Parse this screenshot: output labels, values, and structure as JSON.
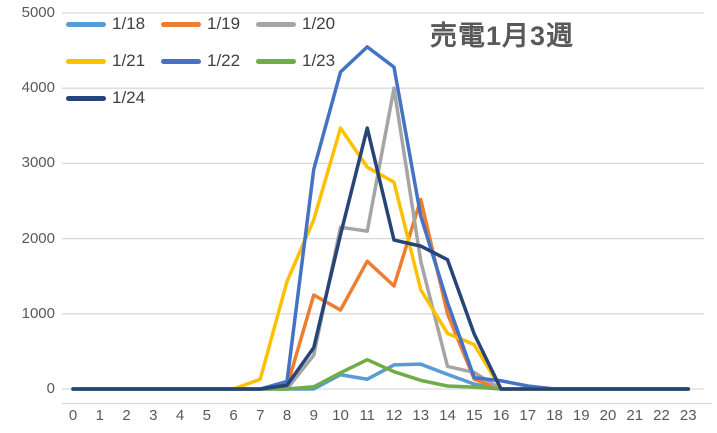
{
  "title": "売電1月3週",
  "colors": {
    "axis_label": "#595959",
    "legend_text": "#404040",
    "gridline": "#D9D9D9",
    "axis_line": "#D9D9D9",
    "title_text": "#595959",
    "background": "#FFFFFF"
  },
  "chart_data": {
    "type": "line",
    "title": "売電1月3週",
    "x": [
      0,
      1,
      2,
      3,
      4,
      5,
      6,
      7,
      8,
      9,
      10,
      11,
      12,
      13,
      14,
      15,
      16,
      17,
      18,
      19,
      20,
      21,
      22,
      23
    ],
    "x_labels": [
      "0",
      "1",
      "2",
      "3",
      "4",
      "5",
      "6",
      "7",
      "8",
      "9",
      "10",
      "11",
      "12",
      "13",
      "14",
      "15",
      "16",
      "17",
      "18",
      "19",
      "20",
      "21",
      "22",
      "23"
    ],
    "y_ticks": [
      0,
      1000,
      2000,
      3000,
      4000,
      5000
    ],
    "ylim": [
      0,
      5000
    ],
    "grid": true,
    "legend_position": "top-left",
    "series": [
      {
        "name": "1/18",
        "color": "#5B9BD5",
        "values": [
          0,
          0,
          0,
          0,
          0,
          0,
          0,
          0,
          0,
          0,
          190,
          130,
          320,
          330,
          195,
          65,
          0,
          0,
          0,
          0,
          0,
          0,
          0,
          0
        ]
      },
      {
        "name": "1/19",
        "color": "#ED7D31",
        "values": [
          0,
          0,
          0,
          0,
          0,
          0,
          0,
          0,
          30,
          1250,
          1050,
          1700,
          1370,
          2520,
          1000,
          130,
          0,
          0,
          0,
          0,
          0,
          0,
          0,
          0
        ]
      },
      {
        "name": "1/20",
        "color": "#A5A5A5",
        "values": [
          0,
          0,
          0,
          0,
          0,
          0,
          0,
          0,
          0,
          450,
          2150,
          2100,
          4000,
          1700,
          300,
          220,
          0,
          0,
          0,
          0,
          0,
          0,
          0,
          0
        ]
      },
      {
        "name": "1/21",
        "color": "#FFC000",
        "values": [
          0,
          0,
          0,
          0,
          0,
          0,
          0,
          130,
          1430,
          2250,
          3470,
          2950,
          2750,
          1320,
          740,
          590,
          0,
          0,
          0,
          0,
          0,
          0,
          0,
          0
        ]
      },
      {
        "name": "1/22",
        "color": "#4472C4",
        "values": [
          0,
          0,
          0,
          0,
          0,
          0,
          0,
          0,
          100,
          2920,
          4215,
          4550,
          4280,
          2300,
          1150,
          150,
          110,
          40,
          0,
          0,
          0,
          0,
          0,
          0
        ]
      },
      {
        "name": "1/23",
        "color": "#70AD47",
        "values": [
          0,
          0,
          0,
          0,
          0,
          0,
          0,
          0,
          0,
          30,
          215,
          390,
          230,
          115,
          40,
          25,
          0,
          0,
          0,
          0,
          0,
          0,
          0,
          0
        ]
      },
      {
        "name": "1/24",
        "color": "#264478",
        "values": [
          0,
          0,
          0,
          0,
          0,
          0,
          0,
          0,
          50,
          550,
          2050,
          3470,
          1980,
          1900,
          1720,
          730,
          0,
          0,
          0,
          0,
          0,
          0,
          0,
          0
        ]
      }
    ]
  }
}
